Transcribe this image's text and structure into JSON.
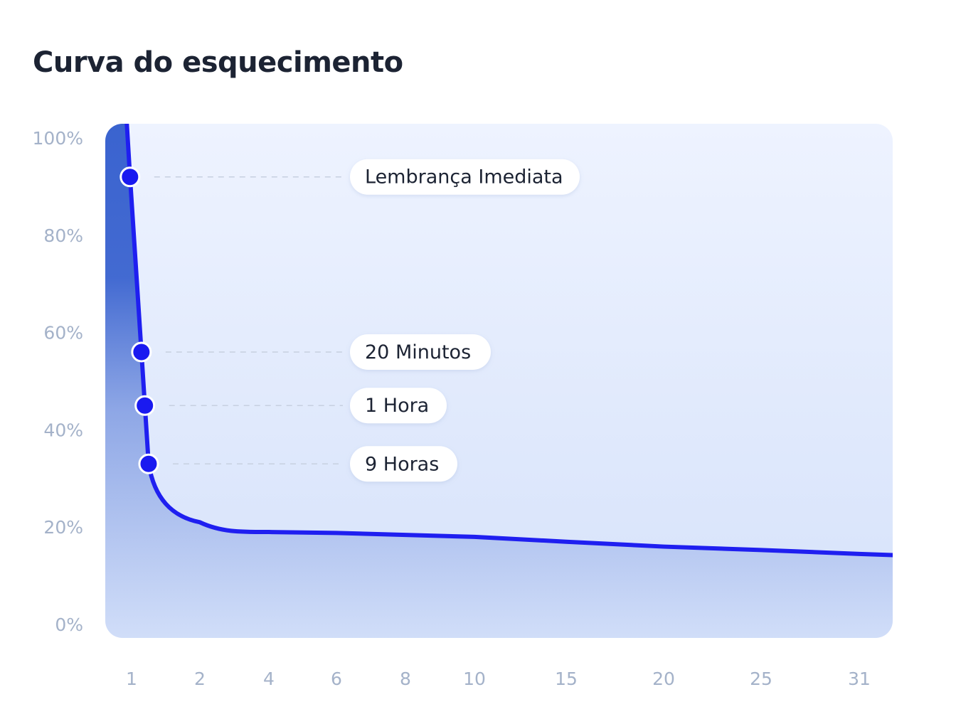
{
  "title": "Curva do esquecimento",
  "chart_data": {
    "type": "line",
    "title": "Curva do esquecimento",
    "xlabel": "",
    "ylabel": "",
    "x_ticks": [
      "1",
      "2",
      "4",
      "6",
      "8",
      "10",
      "15",
      "20",
      "25",
      "31"
    ],
    "y_ticks": [
      "0%",
      "20%",
      "40%",
      "60%",
      "80%",
      "100%"
    ],
    "ylim": [
      0,
      100
    ],
    "grid": false,
    "series": [
      {
        "values": [
          {
            "x": "1",
            "y": 100
          },
          {
            "x": "1",
            "y": 92
          },
          {
            "x": "1",
            "y": 56
          },
          {
            "x": "1",
            "y": 45
          },
          {
            "x": "1",
            "y": 33
          },
          {
            "x": "2",
            "y": 21
          },
          {
            "x": "4",
            "y": 19
          },
          {
            "x": "6",
            "y": 18.8
          },
          {
            "x": "8",
            "y": 18.4
          },
          {
            "x": "10",
            "y": 18
          },
          {
            "x": "15",
            "y": 17
          },
          {
            "x": "20",
            "y": 16
          },
          {
            "x": "25",
            "y": 15.3
          },
          {
            "x": "31",
            "y": 14.5
          }
        ]
      }
    ],
    "annotations": [
      {
        "label": "Lembrança Imediata",
        "y": 92
      },
      {
        "label": "20 Minutos",
        "y": 56
      },
      {
        "label": "1 Hora",
        "y": 45
      },
      {
        "label": "9 Horas",
        "y": 33
      }
    ],
    "colors": {
      "line": "#1f1ff0",
      "marker": "#1a1af0",
      "panel_top": "#eef3ff",
      "panel_bottom": "#d6e2fa",
      "fill_dark": "#3a63cf",
      "tick_text": "#a4b2c9",
      "label_text": "#1c2333",
      "leader": "#c7d0e0"
    }
  }
}
